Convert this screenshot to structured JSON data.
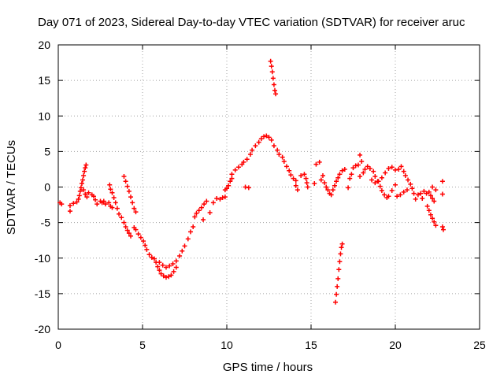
{
  "chart_data": {
    "type": "scatter",
    "title": "Day 071 of 2023, Sidereal Day-to-day VTEC variation (SDTVAR) for receiver aruc",
    "xlabel": "GPS time / hours",
    "ylabel": "SDTVAR / TECUs",
    "xlim": [
      0,
      25
    ],
    "ylim": [
      -20,
      20
    ],
    "xticks": [
      0,
      5,
      10,
      15,
      20,
      25
    ],
    "yticks": [
      -20,
      -15,
      -10,
      -5,
      0,
      5,
      10,
      15,
      20
    ],
    "grid": true,
    "marker": "+",
    "colors": {
      "series": "#ff0000",
      "grid": "#a0a0a0",
      "axis": "#000000"
    },
    "series": [
      {
        "name": "SDTVAR",
        "points": [
          [
            0.1,
            -2.2
          ],
          [
            0.2,
            -2.4
          ],
          [
            0.7,
            -2.6
          ],
          [
            0.7,
            -3.4
          ],
          [
            0.9,
            -2.3
          ],
          [
            1.1,
            -2.1
          ],
          [
            1.2,
            -1.7
          ],
          [
            1.25,
            -1.2
          ],
          [
            1.3,
            -0.6
          ],
          [
            1.35,
            -0.1
          ],
          [
            1.4,
            0.5
          ],
          [
            1.45,
            1.0
          ],
          [
            1.5,
            1.6
          ],
          [
            1.55,
            2.2
          ],
          [
            1.6,
            2.7
          ],
          [
            1.65,
            3.1
          ],
          [
            1.5,
            -0.4
          ],
          [
            1.6,
            -1.0
          ],
          [
            1.7,
            -1.4
          ],
          [
            1.8,
            -0.8
          ],
          [
            2.0,
            -1.1
          ],
          [
            2.1,
            -1.3
          ],
          [
            2.2,
            -1.8
          ],
          [
            2.3,
            -2.4
          ],
          [
            2.5,
            -2.0
          ],
          [
            2.6,
            -2.2
          ],
          [
            2.7,
            -2.0
          ],
          [
            2.8,
            -2.4
          ],
          [
            3.0,
            -2.2
          ],
          [
            3.1,
            -2.7
          ],
          [
            3.2,
            -2.9
          ],
          [
            3.05,
            0.3
          ],
          [
            3.1,
            -0.3
          ],
          [
            3.2,
            -0.8
          ],
          [
            3.3,
            -1.5
          ],
          [
            3.4,
            -2.2
          ],
          [
            3.5,
            -3.0
          ],
          [
            3.6,
            -3.8
          ],
          [
            3.75,
            -4.3
          ],
          [
            3.9,
            -5.0
          ],
          [
            4.0,
            -5.6
          ],
          [
            4.1,
            -6.1
          ],
          [
            4.2,
            -6.5
          ],
          [
            4.3,
            -6.9
          ],
          [
            3.9,
            1.5
          ],
          [
            4.0,
            0.8
          ],
          [
            4.1,
            0.1
          ],
          [
            4.2,
            -0.6
          ],
          [
            4.3,
            -1.4
          ],
          [
            4.4,
            -2.2
          ],
          [
            4.5,
            -3.0
          ],
          [
            4.6,
            -3.5
          ],
          [
            4.5,
            -5.7
          ],
          [
            4.6,
            -6.0
          ],
          [
            4.75,
            -6.6
          ],
          [
            4.9,
            -7.1
          ],
          [
            5.05,
            -7.6
          ],
          [
            5.15,
            -8.2
          ],
          [
            5.25,
            -8.8
          ],
          [
            5.4,
            -9.5
          ],
          [
            5.55,
            -9.9
          ],
          [
            5.7,
            -10.1
          ],
          [
            5.8,
            -10.6
          ],
          [
            5.9,
            -11.2
          ],
          [
            6.0,
            -11.7
          ],
          [
            6.1,
            -12.2
          ],
          [
            6.25,
            -12.5
          ],
          [
            6.4,
            -12.7
          ],
          [
            6.55,
            -12.6
          ],
          [
            6.7,
            -12.4
          ],
          [
            6.85,
            -11.9
          ],
          [
            7.0,
            -11.3
          ],
          [
            6.0,
            -10.6
          ],
          [
            6.2,
            -11.0
          ],
          [
            6.4,
            -11.3
          ],
          [
            6.6,
            -11.1
          ],
          [
            6.8,
            -10.8
          ],
          [
            7.0,
            -10.4
          ],
          [
            7.2,
            -9.7
          ],
          [
            7.35,
            -9.0
          ],
          [
            7.5,
            -8.3
          ],
          [
            7.7,
            -7.3
          ],
          [
            7.85,
            -6.3
          ],
          [
            8.0,
            -5.6
          ],
          [
            8.1,
            -4.2
          ],
          [
            8.2,
            -3.7
          ],
          [
            8.35,
            -3.3
          ],
          [
            8.5,
            -2.9
          ],
          [
            8.65,
            -2.4
          ],
          [
            8.8,
            -2.0
          ],
          [
            8.6,
            -4.6
          ],
          [
            9.0,
            -3.6
          ],
          [
            9.2,
            -2.2
          ],
          [
            9.4,
            -1.6
          ],
          [
            9.6,
            -1.7
          ],
          [
            9.75,
            -1.5
          ],
          [
            9.9,
            -1.4
          ],
          [
            9.9,
            -0.4
          ],
          [
            10.0,
            -0.2
          ],
          [
            10.1,
            0.2
          ],
          [
            10.2,
            0.8
          ],
          [
            10.3,
            1.2
          ],
          [
            10.3,
            1.8
          ],
          [
            10.5,
            2.4
          ],
          [
            10.7,
            2.8
          ],
          [
            10.9,
            3.2
          ],
          [
            11.0,
            3.5
          ],
          [
            11.2,
            3.9
          ],
          [
            11.4,
            4.6
          ],
          [
            11.5,
            5.2
          ],
          [
            11.7,
            5.8
          ],
          [
            11.9,
            6.3
          ],
          [
            12.05,
            6.8
          ],
          [
            12.2,
            7.1
          ],
          [
            12.35,
            7.2
          ],
          [
            12.5,
            7.0
          ],
          [
            12.65,
            6.6
          ],
          [
            12.8,
            5.8
          ],
          [
            11.1,
            0.0
          ],
          [
            11.3,
            -0.1
          ],
          [
            12.6,
            17.7
          ],
          [
            12.65,
            17.0
          ],
          [
            12.7,
            16.2
          ],
          [
            12.75,
            15.3
          ],
          [
            12.8,
            14.4
          ],
          [
            12.85,
            13.6
          ],
          [
            12.9,
            13.1
          ],
          [
            13.0,
            5.2
          ],
          [
            13.1,
            4.6
          ],
          [
            13.3,
            4.2
          ],
          [
            13.4,
            3.6
          ],
          [
            13.55,
            2.9
          ],
          [
            13.7,
            2.3
          ],
          [
            13.8,
            1.7
          ],
          [
            13.95,
            1.2
          ],
          [
            14.1,
            0.9
          ],
          [
            14.1,
            0.2
          ],
          [
            14.2,
            -0.4
          ],
          [
            14.4,
            1.6
          ],
          [
            14.6,
            1.8
          ],
          [
            14.7,
            1.2
          ],
          [
            14.75,
            0.6
          ],
          [
            14.8,
            0.0
          ],
          [
            15.2,
            0.5
          ],
          [
            15.3,
            3.2
          ],
          [
            15.5,
            3.5
          ],
          [
            15.6,
            1.0
          ],
          [
            15.7,
            1.6
          ],
          [
            15.8,
            0.6
          ],
          [
            15.9,
            0.0
          ],
          [
            16.0,
            -0.4
          ],
          [
            16.1,
            -0.9
          ],
          [
            16.2,
            -1.1
          ],
          [
            16.3,
            -0.4
          ],
          [
            16.4,
            0.2
          ],
          [
            16.5,
            0.8
          ],
          [
            16.6,
            1.3
          ],
          [
            16.7,
            1.8
          ],
          [
            16.85,
            2.3
          ],
          [
            17.0,
            2.5
          ],
          [
            16.45,
            -16.2
          ],
          [
            16.5,
            -15.1
          ],
          [
            16.55,
            -14.0
          ],
          [
            16.6,
            -12.9
          ],
          [
            16.65,
            -11.6
          ],
          [
            16.7,
            -10.5
          ],
          [
            16.75,
            -9.4
          ],
          [
            16.8,
            -8.5
          ],
          [
            16.85,
            -8.0
          ],
          [
            17.2,
            -0.1
          ],
          [
            17.3,
            1.2
          ],
          [
            17.4,
            1.8
          ],
          [
            17.5,
            2.7
          ],
          [
            17.65,
            3.0
          ],
          [
            17.8,
            3.1
          ],
          [
            17.9,
            4.5
          ],
          [
            18.0,
            3.6
          ],
          [
            17.9,
            1.5
          ],
          [
            18.1,
            2.0
          ],
          [
            18.2,
            2.5
          ],
          [
            18.35,
            2.9
          ],
          [
            18.5,
            2.6
          ],
          [
            18.7,
            2.2
          ],
          [
            18.8,
            1.5
          ],
          [
            18.95,
            0.8
          ],
          [
            19.1,
            0.1
          ],
          [
            19.2,
            -0.5
          ],
          [
            19.35,
            -1.1
          ],
          [
            19.5,
            -1.5
          ],
          [
            19.6,
            -1.3
          ],
          [
            19.8,
            -0.5
          ],
          [
            20.0,
            0.3
          ],
          [
            18.6,
            1.0
          ],
          [
            18.8,
            0.6
          ],
          [
            19.0,
            0.8
          ],
          [
            19.2,
            1.3
          ],
          [
            19.4,
            2.0
          ],
          [
            19.6,
            2.6
          ],
          [
            19.8,
            2.8
          ],
          [
            20.0,
            2.4
          ],
          [
            20.2,
            2.5
          ],
          [
            20.35,
            2.9
          ],
          [
            20.5,
            2.2
          ],
          [
            20.6,
            1.6
          ],
          [
            20.75,
            1.0
          ],
          [
            20.9,
            0.4
          ],
          [
            21.0,
            -0.2
          ],
          [
            21.1,
            -0.9
          ],
          [
            20.1,
            -1.3
          ],
          [
            20.3,
            -1.1
          ],
          [
            20.5,
            -0.7
          ],
          [
            20.7,
            -0.4
          ],
          [
            21.2,
            -1.7
          ],
          [
            21.35,
            -1.1
          ],
          [
            21.5,
            -0.9
          ],
          [
            21.6,
            -1.6
          ],
          [
            21.7,
            -0.6
          ],
          [
            21.85,
            -0.9
          ],
          [
            21.9,
            -2.7
          ],
          [
            22.0,
            -3.3
          ],
          [
            22.1,
            -3.9
          ],
          [
            22.2,
            -4.4
          ],
          [
            22.3,
            -4.9
          ],
          [
            22.4,
            -5.4
          ],
          [
            22.0,
            -0.7
          ],
          [
            22.1,
            -1.2
          ],
          [
            22.2,
            -1.6
          ],
          [
            22.3,
            -2.0
          ],
          [
            22.2,
            0.0
          ],
          [
            22.4,
            -0.4
          ],
          [
            22.8,
            0.8
          ],
          [
            22.8,
            -1.0
          ],
          [
            22.8,
            -5.6
          ],
          [
            22.85,
            -6.0
          ]
        ]
      }
    ]
  }
}
